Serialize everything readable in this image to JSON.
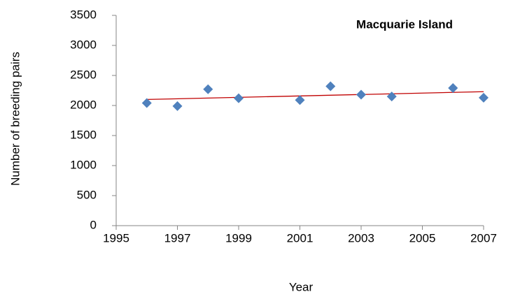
{
  "chart_data": {
    "type": "scatter",
    "title": "Macquarie Island",
    "x_label": "Year",
    "y_label": "Number of breeding pairs",
    "series": [
      {
        "name": "Breeding pairs",
        "color": "#4f81bd",
        "x": [
          1996,
          1997,
          1998,
          1999,
          2001,
          2002,
          2003,
          2004,
          2006,
          2007
        ],
        "values": [
          2040,
          1990,
          2270,
          2120,
          2090,
          2320,
          2180,
          2150,
          2290,
          2130
        ]
      }
    ],
    "trendline": {
      "color": "#c00000",
      "x": [
        1996,
        2007
      ],
      "values": [
        2100,
        2230
      ]
    },
    "xlim": [
      1995,
      2007
    ],
    "xticks": [
      1995,
      1997,
      1999,
      2001,
      2003,
      2005,
      2007
    ],
    "ylim": [
      0,
      3500
    ],
    "yticks": [
      0,
      500,
      1000,
      1500,
      2000,
      2500,
      3000,
      3500
    ],
    "grid": false
  }
}
